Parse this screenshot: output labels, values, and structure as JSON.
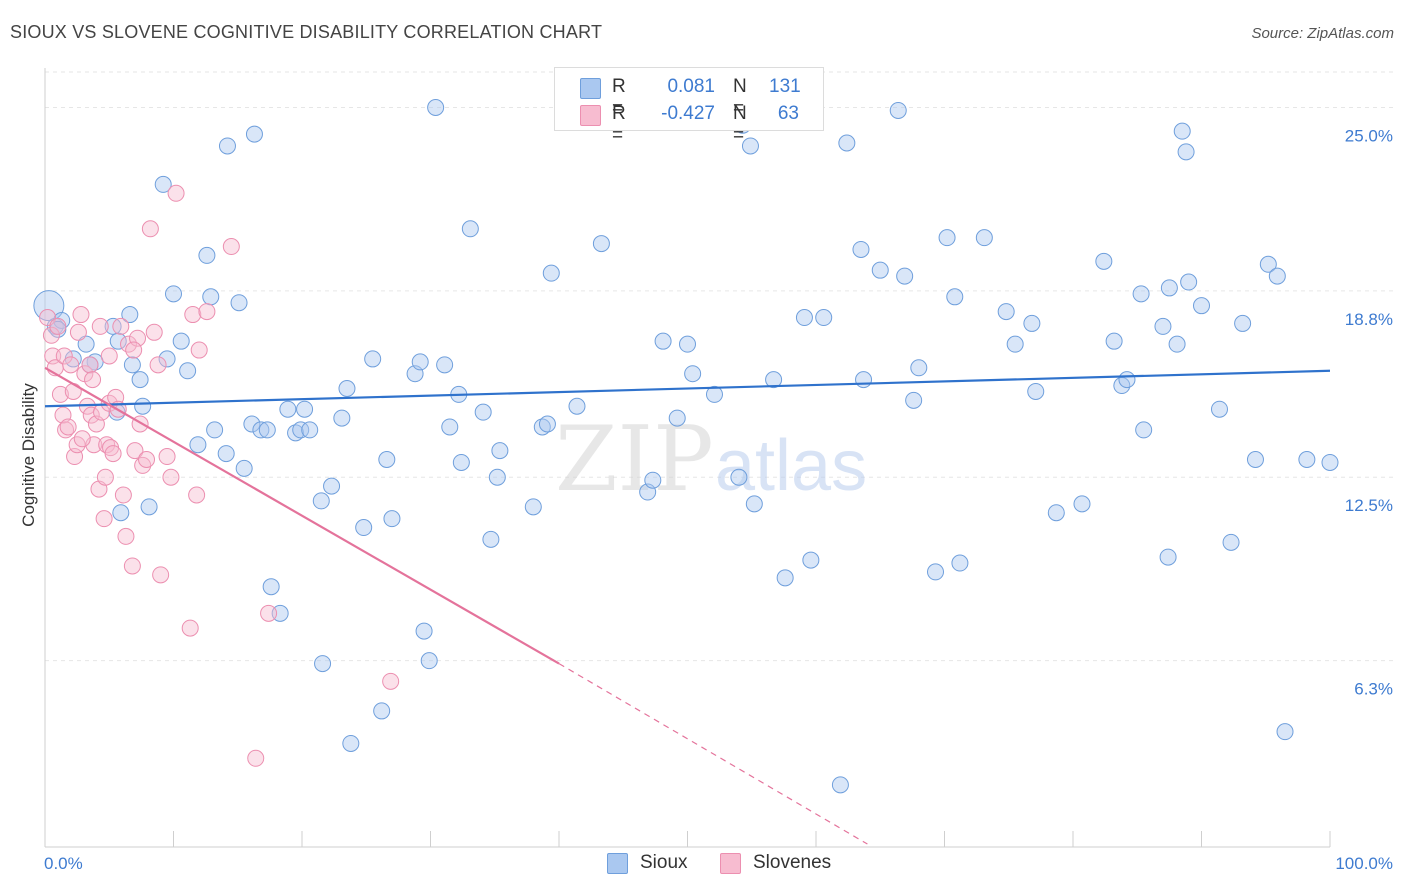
{
  "header": {
    "title": "SIOUX VS SLOVENE COGNITIVE DISABILITY CORRELATION CHART",
    "source": "Source: ZipAtlas.com"
  },
  "legend": {
    "rows": [
      {
        "r_label": "R =",
        "r_value": "0.081",
        "n_label": "N =",
        "n_value": "131"
      },
      {
        "r_label": "R =",
        "r_value": "-0.427",
        "n_label": "N =",
        "n_value": "63"
      }
    ],
    "bottom": [
      "Sioux",
      "Slovenes"
    ]
  },
  "watermark": {
    "zip": "ZIP",
    "atlas": "atlas"
  },
  "colors": {
    "sioux_fill": "#aac8f0",
    "sioux_stroke": "#6f9fdc",
    "sioux_line": "#2f72cc",
    "slovene_fill": "#f7bcd0",
    "slovene_stroke": "#ec8fb0",
    "slovene_line": "#e4739b",
    "axis_label": "#3e7bd0",
    "grid": "#e6e6e6"
  },
  "chart_data": {
    "type": "scatter",
    "title": "SIOUX VS SLOVENE COGNITIVE DISABILITY CORRELATION CHART",
    "xlabel": "",
    "ylabel": "Cognitive Disability",
    "xlim": [
      0,
      100
    ],
    "ylim": [
      0,
      26.2
    ],
    "x_tick_labels": [
      "0.0%",
      "100.0%"
    ],
    "y_ticks": [
      6.3,
      12.5,
      18.8,
      25.0
    ],
    "y_tick_labels": [
      "6.3%",
      "12.5%",
      "18.8%",
      "25.0%"
    ],
    "grid": "horizontal dashed",
    "legend_position": "top-center and bottom",
    "series": [
      {
        "name": "Sioux",
        "r": 0.081,
        "n": 131,
        "trend": {
          "x": [
            0,
            100
          ],
          "y": [
            14.9,
            16.1
          ],
          "style": "solid"
        },
        "points": [
          [
            0.3,
            18.3
          ],
          [
            0.8,
            17.6
          ],
          [
            1.3,
            17.8
          ],
          [
            1.0,
            17.5
          ],
          [
            3.2,
            17.0
          ],
          [
            3.9,
            16.4
          ],
          [
            3.5,
            16.3
          ],
          [
            2.2,
            16.5
          ],
          [
            5.3,
            17.6
          ],
          [
            5.6,
            14.7
          ],
          [
            6.6,
            18.0
          ],
          [
            5.7,
            17.1
          ],
          [
            6.8,
            16.3
          ],
          [
            7.4,
            15.8
          ],
          [
            8.1,
            11.5
          ],
          [
            5.9,
            11.3
          ],
          [
            7.6,
            14.9
          ],
          [
            9.2,
            22.4
          ],
          [
            9.5,
            16.5
          ],
          [
            10.0,
            18.7
          ],
          [
            10.6,
            17.1
          ],
          [
            11.1,
            16.1
          ],
          [
            11.9,
            13.6
          ],
          [
            12.6,
            20.0
          ],
          [
            12.9,
            18.6
          ],
          [
            13.2,
            14.1
          ],
          [
            14.1,
            13.3
          ],
          [
            15.1,
            18.4
          ],
          [
            14.2,
            23.7
          ],
          [
            15.5,
            12.8
          ],
          [
            16.1,
            14.3
          ],
          [
            16.3,
            24.1
          ],
          [
            16.8,
            14.1
          ],
          [
            17.3,
            14.1
          ],
          [
            17.6,
            8.8
          ],
          [
            18.3,
            7.9
          ],
          [
            18.9,
            14.8
          ],
          [
            19.5,
            14.0
          ],
          [
            19.9,
            14.1
          ],
          [
            20.2,
            14.8
          ],
          [
            20.6,
            14.1
          ],
          [
            21.5,
            11.7
          ],
          [
            21.6,
            6.2
          ],
          [
            22.3,
            12.2
          ],
          [
            23.1,
            14.5
          ],
          [
            23.5,
            15.5
          ],
          [
            23.8,
            3.5
          ],
          [
            24.8,
            10.8
          ],
          [
            25.5,
            16.5
          ],
          [
            26.2,
            4.6
          ],
          [
            26.6,
            13.1
          ],
          [
            27.0,
            11.1
          ],
          [
            28.8,
            16.0
          ],
          [
            29.2,
            16.4
          ],
          [
            29.5,
            7.3
          ],
          [
            29.9,
            6.3
          ],
          [
            31.1,
            16.3
          ],
          [
            31.5,
            14.2
          ],
          [
            32.2,
            15.3
          ],
          [
            32.4,
            13.0
          ],
          [
            33.1,
            20.9
          ],
          [
            34.1,
            14.7
          ],
          [
            34.7,
            10.4
          ],
          [
            35.2,
            12.5
          ],
          [
            35.4,
            13.4
          ],
          [
            38.0,
            11.5
          ],
          [
            38.7,
            14.2
          ],
          [
            39.1,
            14.3
          ],
          [
            39.4,
            19.4
          ],
          [
            41.4,
            14.9
          ],
          [
            43.3,
            20.4
          ],
          [
            46.9,
            12.0
          ],
          [
            47.3,
            12.4
          ],
          [
            48.1,
            17.1
          ],
          [
            49.2,
            14.5
          ],
          [
            50.0,
            17.0
          ],
          [
            50.4,
            16.0
          ],
          [
            52.1,
            15.3
          ],
          [
            54.3,
            24.4
          ],
          [
            54.9,
            23.7
          ],
          [
            54.0,
            12.5
          ],
          [
            55.2,
            11.6
          ],
          [
            56.7,
            15.8
          ],
          [
            57.6,
            9.1
          ],
          [
            59.1,
            17.9
          ],
          [
            59.6,
            9.7
          ],
          [
            60.6,
            17.9
          ],
          [
            62.4,
            23.8
          ],
          [
            63.7,
            15.8
          ],
          [
            63.5,
            20.2
          ],
          [
            65.0,
            19.5
          ],
          [
            66.4,
            24.9
          ],
          [
            66.9,
            19.3
          ],
          [
            67.6,
            15.1
          ],
          [
            68.0,
            16.2
          ],
          [
            69.3,
            9.3
          ],
          [
            70.2,
            20.6
          ],
          [
            70.8,
            18.6
          ],
          [
            71.2,
            9.6
          ],
          [
            73.1,
            20.6
          ],
          [
            74.8,
            18.1
          ],
          [
            75.5,
            17.0
          ],
          [
            76.8,
            17.7
          ],
          [
            77.1,
            15.4
          ],
          [
            78.7,
            11.3
          ],
          [
            80.7,
            11.6
          ],
          [
            82.4,
            19.8
          ],
          [
            83.2,
            17.1
          ],
          [
            83.8,
            15.6
          ],
          [
            84.2,
            15.8
          ],
          [
            85.3,
            18.7
          ],
          [
            85.5,
            14.1
          ],
          [
            87.0,
            17.6
          ],
          [
            87.4,
            9.8
          ],
          [
            87.5,
            18.9
          ],
          [
            88.1,
            17.0
          ],
          [
            88.5,
            24.2
          ],
          [
            88.8,
            23.5
          ],
          [
            89.0,
            19.1
          ],
          [
            90.0,
            18.3
          ],
          [
            91.4,
            14.8
          ],
          [
            92.3,
            10.3
          ],
          [
            93.2,
            17.7
          ],
          [
            94.2,
            13.1
          ],
          [
            95.2,
            19.7
          ],
          [
            95.9,
            19.3
          ],
          [
            96.5,
            3.9
          ],
          [
            98.2,
            13.1
          ],
          [
            100.0,
            13.0
          ],
          [
            30.4,
            25.0
          ],
          [
            61.9,
            2.1
          ]
        ]
      },
      {
        "name": "Slovenes",
        "r": -0.427,
        "n": 63,
        "trend": {
          "x": [
            0,
            40,
            64
          ],
          "y": [
            16.2,
            6.2,
            0.1
          ],
          "style": "solid then dashed"
        },
        "points": [
          [
            0.2,
            17.9
          ],
          [
            0.5,
            17.3
          ],
          [
            0.6,
            16.6
          ],
          [
            0.8,
            16.2
          ],
          [
            1.2,
            15.3
          ],
          [
            1.4,
            14.6
          ],
          [
            1.5,
            16.6
          ],
          [
            1.6,
            14.1
          ],
          [
            1.8,
            14.2
          ],
          [
            2.0,
            16.3
          ],
          [
            2.2,
            15.4
          ],
          [
            2.3,
            13.2
          ],
          [
            2.5,
            13.6
          ],
          [
            2.6,
            17.4
          ],
          [
            2.8,
            18.0
          ],
          [
            3.1,
            16.0
          ],
          [
            3.3,
            14.9
          ],
          [
            3.5,
            16.3
          ],
          [
            3.6,
            14.6
          ],
          [
            3.8,
            13.6
          ],
          [
            4.0,
            14.3
          ],
          [
            4.2,
            12.1
          ],
          [
            4.3,
            17.6
          ],
          [
            4.4,
            14.7
          ],
          [
            4.6,
            11.1
          ],
          [
            4.7,
            12.5
          ],
          [
            4.8,
            13.6
          ],
          [
            5.0,
            15.0
          ],
          [
            5.1,
            13.5
          ],
          [
            5.3,
            13.3
          ],
          [
            5.5,
            15.2
          ],
          [
            5.7,
            14.8
          ],
          [
            5.9,
            17.6
          ],
          [
            6.1,
            11.9
          ],
          [
            6.3,
            10.5
          ],
          [
            6.5,
            17.0
          ],
          [
            6.8,
            9.5
          ],
          [
            7.0,
            13.4
          ],
          [
            7.2,
            17.2
          ],
          [
            7.4,
            14.3
          ],
          [
            7.6,
            12.9
          ],
          [
            7.9,
            13.1
          ],
          [
            8.2,
            20.9
          ],
          [
            8.5,
            17.4
          ],
          [
            8.8,
            16.3
          ],
          [
            9.0,
            9.2
          ],
          [
            9.5,
            13.2
          ],
          [
            9.8,
            12.5
          ],
          [
            10.2,
            22.1
          ],
          [
            11.3,
            7.4
          ],
          [
            11.5,
            18.0
          ],
          [
            11.8,
            11.9
          ],
          [
            12.0,
            16.8
          ],
          [
            12.6,
            18.1
          ],
          [
            14.5,
            20.3
          ],
          [
            16.4,
            3.0
          ],
          [
            17.4,
            7.9
          ],
          [
            26.9,
            5.6
          ],
          [
            1.0,
            17.6
          ],
          [
            2.9,
            13.8
          ],
          [
            5.0,
            16.6
          ],
          [
            3.7,
            15.8
          ],
          [
            6.9,
            16.8
          ]
        ]
      }
    ]
  }
}
